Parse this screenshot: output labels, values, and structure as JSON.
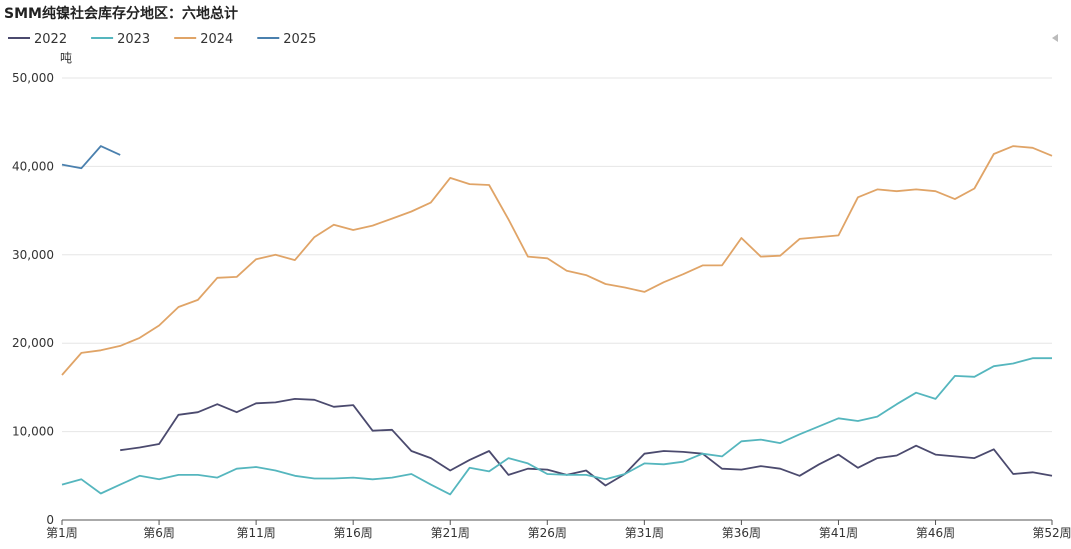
{
  "chart_data": {
    "type": "line",
    "title": "SMM纯镍社会库存分地区：六地总计",
    "y_unit": "吨",
    "categories": [
      "第1周",
      null,
      null,
      null,
      null,
      "第6周",
      null,
      null,
      null,
      null,
      "第11周",
      null,
      null,
      null,
      null,
      "第16周",
      null,
      null,
      null,
      null,
      "第21周",
      null,
      null,
      null,
      null,
      "第26周",
      null,
      null,
      null,
      null,
      "第31周",
      null,
      null,
      null,
      null,
      "第36周",
      null,
      null,
      null,
      null,
      "第41周",
      null,
      null,
      null,
      null,
      "第46周",
      null,
      null,
      null,
      null,
      null,
      "第52周"
    ],
    "ylim": [
      0,
      50000
    ],
    "yticks": [
      0,
      {
        "value": 10000,
        "label": "10,000"
      },
      {
        "value": 20000,
        "label": "20,000"
      },
      {
        "value": 30000,
        "label": "30,000"
      },
      {
        "value": 40000,
        "label": "40,000"
      },
      {
        "value": 50000,
        "label": "50,000"
      }
    ],
    "grid": true,
    "legend": "top-left",
    "series": [
      {
        "name": "2022",
        "color": "#4b4a6e",
        "values": [
          null,
          null,
          null,
          7900,
          8200,
          8600,
          11900,
          12200,
          13100,
          12200,
          13200,
          13300,
          13700,
          13600,
          12800,
          13000,
          10100,
          10200,
          7800,
          7000,
          5600,
          6800,
          7800,
          5100,
          5800,
          5700,
          5100,
          5600,
          3900,
          5200,
          7500,
          7800,
          7700,
          7500,
          5800,
          5700,
          6100,
          5800,
          5000,
          6300,
          7400,
          5900,
          7000,
          7300,
          8400,
          7400,
          7200,
          7000,
          8000,
          5200,
          5400,
          5000
        ]
      },
      {
        "name": "2023",
        "color": "#55b6be",
        "values": [
          4000,
          4600,
          3000,
          4000,
          5000,
          4600,
          5100,
          5100,
          4800,
          5800,
          6000,
          5600,
          5000,
          4700,
          4700,
          4800,
          4600,
          4800,
          5200,
          4000,
          2900,
          5900,
          5500,
          7000,
          6400,
          5200,
          5100,
          5100,
          4600,
          5200,
          6400,
          6300,
          6600,
          7500,
          7200,
          8900,
          9100,
          8700,
          9700,
          10600,
          11500,
          11200,
          11700,
          13100,
          14400,
          13700,
          16300,
          16200,
          17400,
          17700,
          18300,
          18300
        ]
      },
      {
        "name": "2024",
        "color": "#e0a467",
        "values": [
          16400,
          18900,
          19200,
          19700,
          20600,
          22000,
          24100,
          24900,
          27400,
          27500,
          29500,
          30000,
          29400,
          32000,
          33400,
          32800,
          33300,
          34100,
          34900,
          35900,
          38700,
          38000,
          37900,
          34000,
          29800,
          29600,
          28200,
          27700,
          26700,
          26300,
          25800,
          26900,
          27800,
          28800,
          28800,
          31900,
          29800,
          29900,
          31800,
          32000,
          32200,
          36500,
          37400,
          37200,
          37400,
          37200,
          36300,
          37500,
          41400,
          42300,
          42100,
          41200
        ]
      },
      {
        "name": "2025",
        "color": "#4a80ae",
        "values": [
          40200,
          39800,
          42300,
          41300,
          null,
          null,
          null,
          null,
          null,
          null,
          null,
          null,
          null,
          null,
          null,
          null,
          null,
          null,
          null,
          null,
          null,
          null,
          null,
          null,
          null,
          null,
          null,
          null,
          null,
          null,
          null,
          null,
          null,
          null,
          null,
          null,
          null,
          null,
          null,
          null,
          null,
          null,
          null,
          null,
          null,
          null,
          null,
          null,
          null,
          null,
          null,
          null
        ]
      }
    ]
  }
}
